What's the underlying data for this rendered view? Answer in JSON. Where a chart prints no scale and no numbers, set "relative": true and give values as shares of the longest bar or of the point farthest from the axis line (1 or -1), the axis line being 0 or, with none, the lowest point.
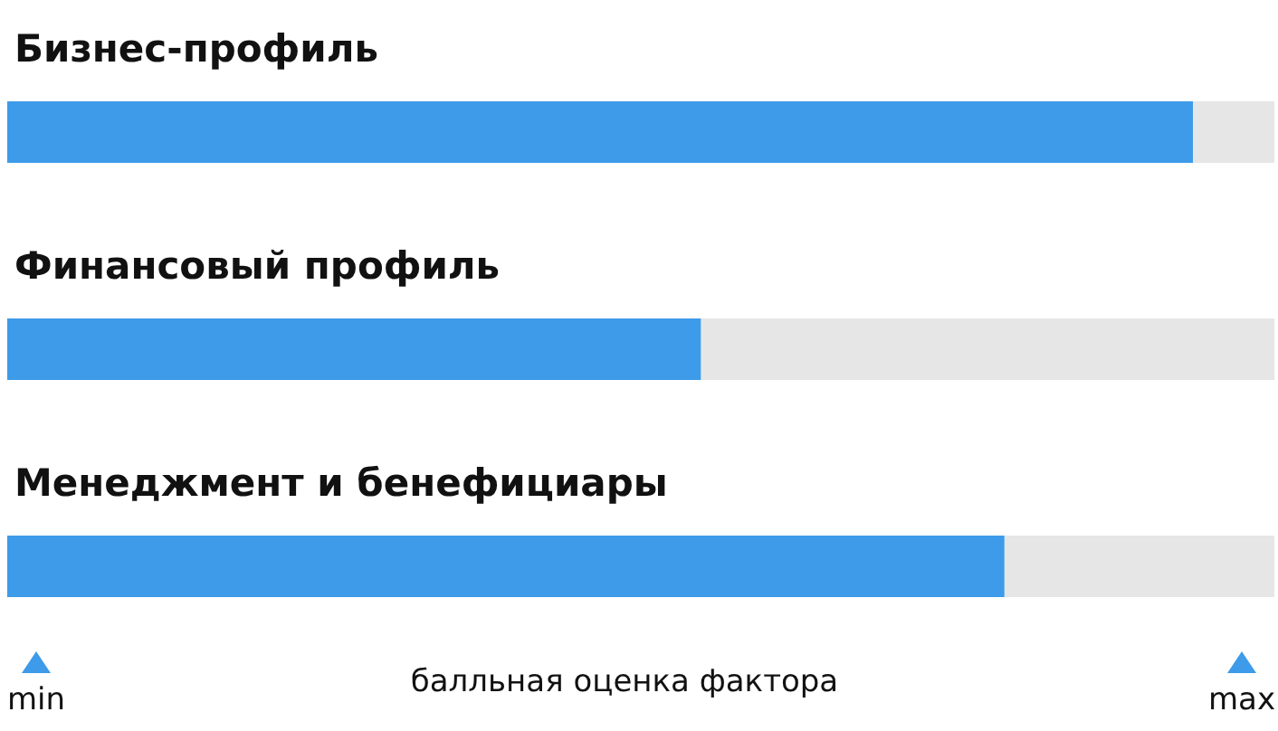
{
  "chart_data": {
    "type": "bar",
    "orientation": "horizontal",
    "relative": true,
    "categories": [
      "Бизнес-профиль",
      "Финансовый профиль",
      "Менеджмент и бенефициары"
    ],
    "values": [
      1,
      0.585,
      0.841
    ],
    "color": "#3d9be9",
    "xlabel": "балльная оценка фактора",
    "annotations": [
      "min",
      "max"
    ]
  }
}
